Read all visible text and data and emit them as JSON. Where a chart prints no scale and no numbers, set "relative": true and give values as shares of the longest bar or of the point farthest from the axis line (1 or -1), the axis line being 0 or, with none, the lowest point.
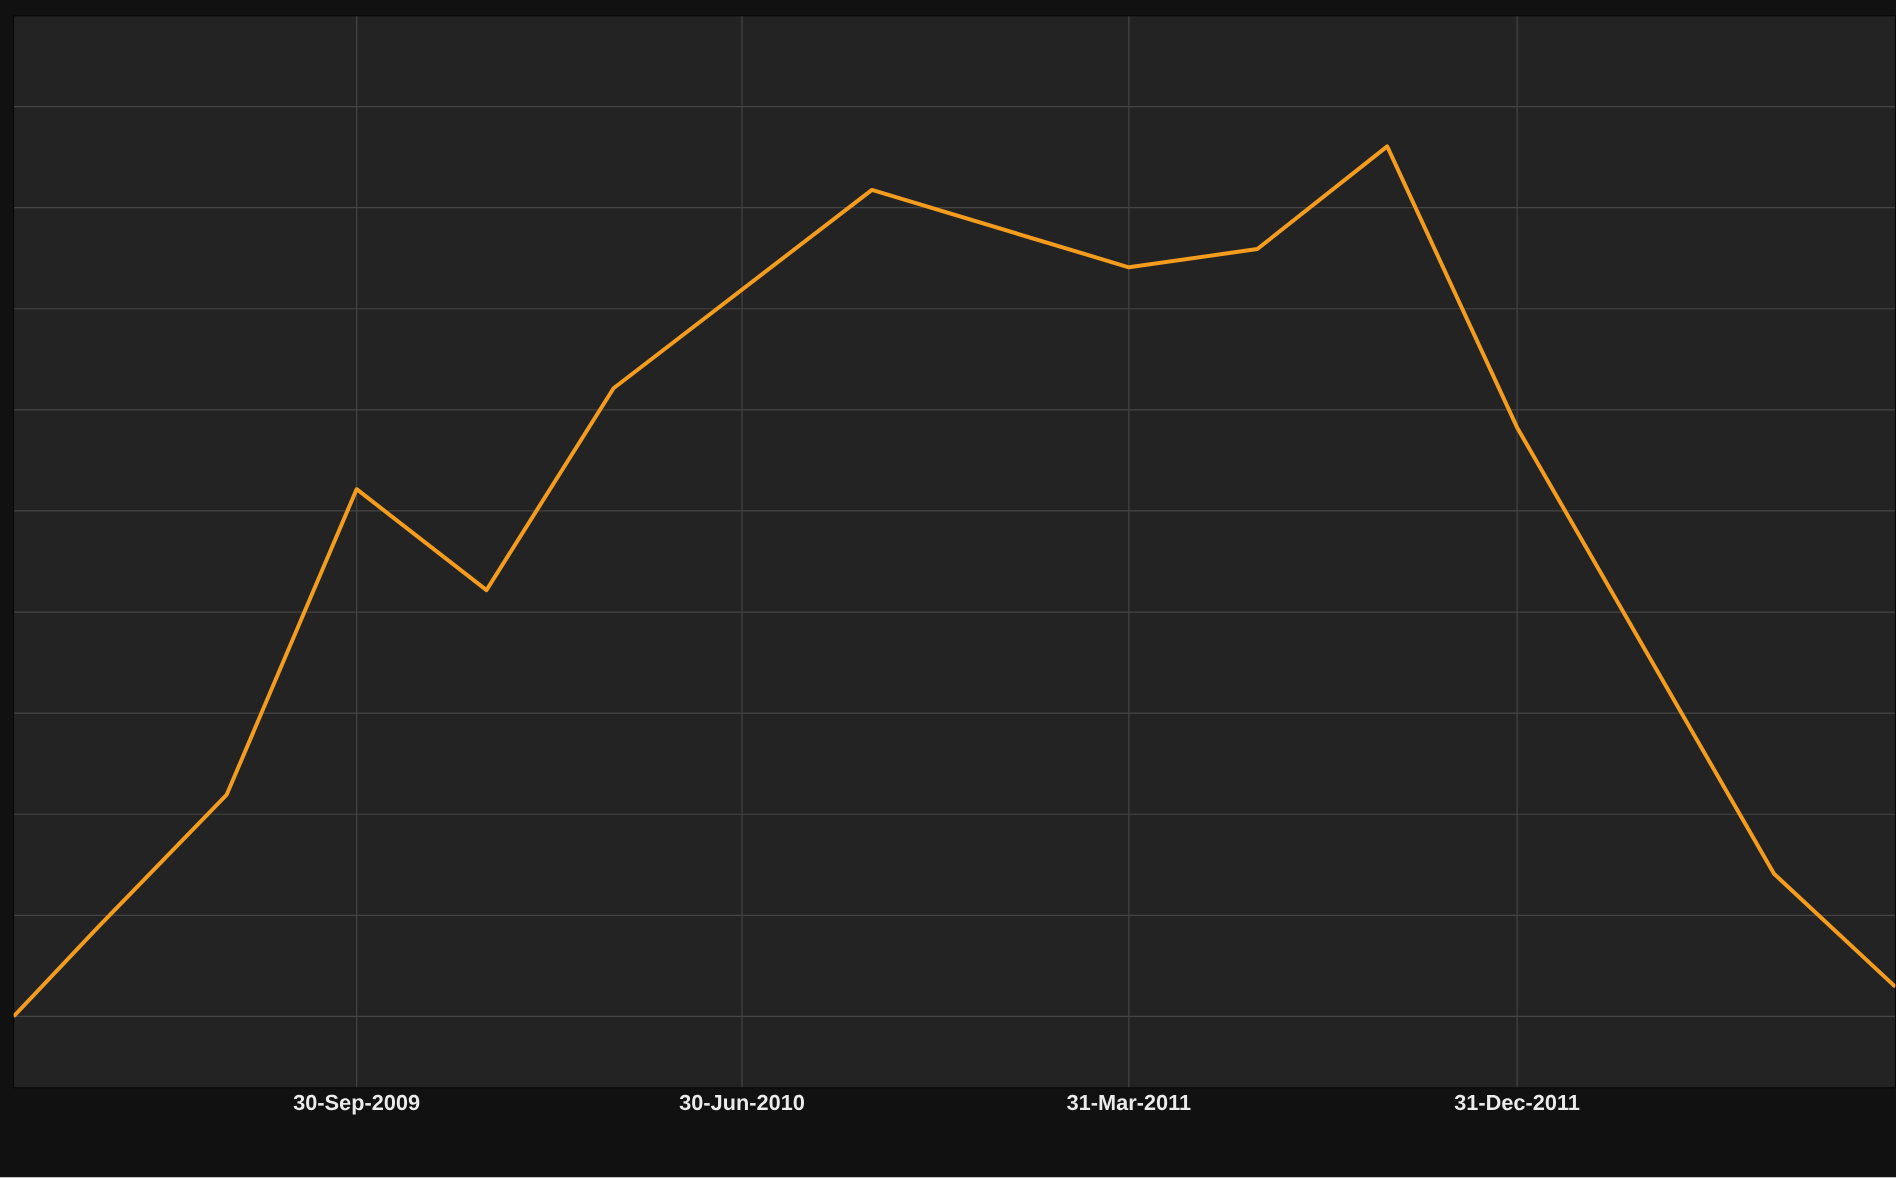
{
  "chart_data": {
    "type": "line",
    "relative": true,
    "grid": true,
    "marker": "none",
    "line_style": "solid",
    "color": "#f39c1e",
    "x": [
      "2009-01-30",
      "2009-03-31",
      "2009-06-30",
      "2009-09-30",
      "2009-12-31",
      "2010-03-31",
      "2010-09-30",
      "2011-03-31",
      "2011-06-30",
      "2011-09-30",
      "2011-12-31",
      "2012-06-30",
      "2012-09-24"
    ],
    "values": [
      0,
      0.103,
      0.255,
      0.606,
      0.49,
      0.722,
      0.95,
      0.861,
      0.882,
      1,
      0.677,
      0.164,
      0.034
    ],
    "xlim": [
      "2009-01-30",
      "2012-09-24"
    ],
    "xticks": [
      {
        "value": "2009-09-30",
        "label": "30-Sep-2009"
      },
      {
        "value": "2010-06-30",
        "label": "30-Jun-2010"
      },
      {
        "value": "2011-03-31",
        "label": "31-Mar-2011"
      },
      {
        "value": "2011-12-31",
        "label": "31-Dec-2011"
      }
    ]
  }
}
